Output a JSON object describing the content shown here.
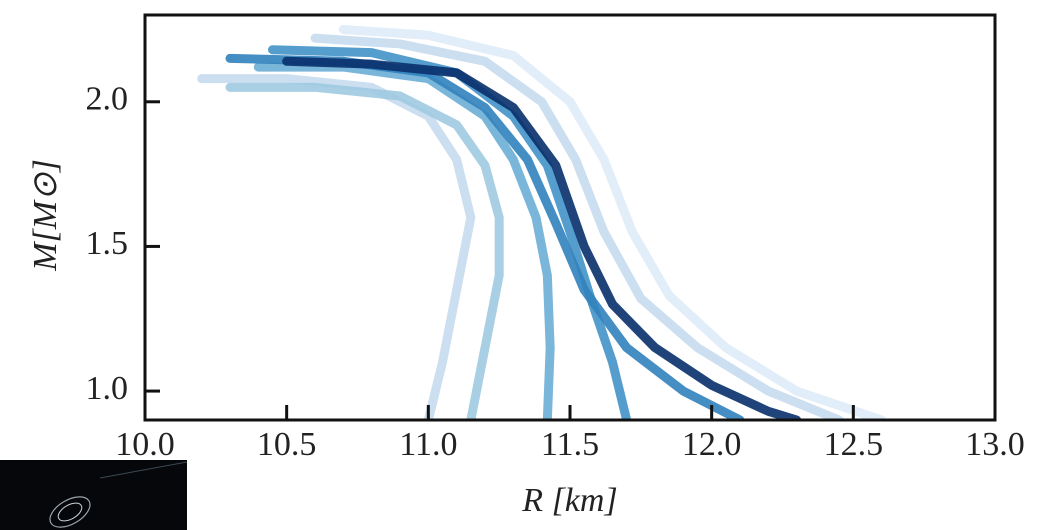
{
  "chart_data": {
    "type": "line",
    "x_label": "R [km]",
    "y_label": "M[M⊙]",
    "xlim": [
      10.0,
      13.0
    ],
    "ylim": [
      0.9,
      2.3
    ],
    "xticks": [
      {
        "value": 10,
        "label": "10.0"
      },
      10.5,
      {
        "value": 11,
        "label": "11.0"
      },
      11.5,
      {
        "value": 12,
        "label": "12.0"
      },
      12.5,
      {
        "value": 13,
        "label": "13.0"
      }
    ],
    "yticks": [
      {
        "value": 1,
        "label": "1.0"
      },
      1.5,
      {
        "value": 2,
        "label": "2.0"
      }
    ],
    "series": [
      {
        "color": "#deebf7",
        "x": [
          10.7,
          11.0,
          11.3,
          11.5,
          11.62,
          11.72,
          11.85,
          12.05,
          12.3,
          12.6
        ],
        "values": [
          2.25,
          2.23,
          2.16,
          2.0,
          1.8,
          1.55,
          1.33,
          1.15,
          1.0,
          0.9
        ]
      },
      {
        "color": "#c6dbef",
        "x": [
          10.2,
          10.5,
          10.8,
          11.0,
          11.1,
          11.15,
          11.1,
          11.05,
          11.0
        ],
        "values": [
          2.08,
          2.08,
          2.05,
          1.95,
          1.8,
          1.6,
          1.35,
          1.1,
          0.9
        ]
      },
      {
        "color": "#c6dbef",
        "x": [
          10.6,
          10.9,
          11.2,
          11.4,
          11.52,
          11.62,
          11.75,
          11.95,
          12.2,
          12.45
        ],
        "values": [
          2.22,
          2.2,
          2.14,
          2.0,
          1.8,
          1.55,
          1.32,
          1.15,
          1.0,
          0.9
        ]
      },
      {
        "color": "#9ecae1",
        "x": [
          10.3,
          10.6,
          10.9,
          11.1,
          11.2,
          11.25,
          11.25,
          11.2,
          11.15
        ],
        "values": [
          2.05,
          2.05,
          2.02,
          1.92,
          1.78,
          1.6,
          1.4,
          1.15,
          0.9
        ]
      },
      {
        "color": "#6baed6",
        "x": [
          10.4,
          10.7,
          11.0,
          11.2,
          11.3,
          11.38,
          11.42,
          11.43,
          11.42
        ],
        "values": [
          2.12,
          2.12,
          2.08,
          1.95,
          1.8,
          1.6,
          1.4,
          1.15,
          0.9
        ]
      },
      {
        "color": "#4292c6",
        "x": [
          10.45,
          10.8,
          11.1,
          11.3,
          11.42,
          11.5,
          11.58,
          11.65,
          11.7
        ],
        "values": [
          2.18,
          2.17,
          2.1,
          1.95,
          1.78,
          1.55,
          1.3,
          1.1,
          0.9
        ]
      },
      {
        "color": "#3182bd",
        "x": [
          10.3,
          10.7,
          11.0,
          11.2,
          11.35,
          11.45,
          11.55,
          11.7,
          11.9,
          12.1
        ],
        "values": [
          2.15,
          2.14,
          2.1,
          1.98,
          1.8,
          1.58,
          1.35,
          1.15,
          1.0,
          0.9
        ]
      },
      {
        "color": "#08306b",
        "x": [
          10.5,
          10.8,
          11.1,
          11.3,
          11.45,
          11.55,
          11.65,
          11.8,
          12.0,
          12.2,
          12.3
        ],
        "values": [
          2.14,
          2.13,
          2.1,
          1.98,
          1.78,
          1.5,
          1.3,
          1.15,
          1.02,
          0.93,
          0.9
        ]
      }
    ]
  }
}
